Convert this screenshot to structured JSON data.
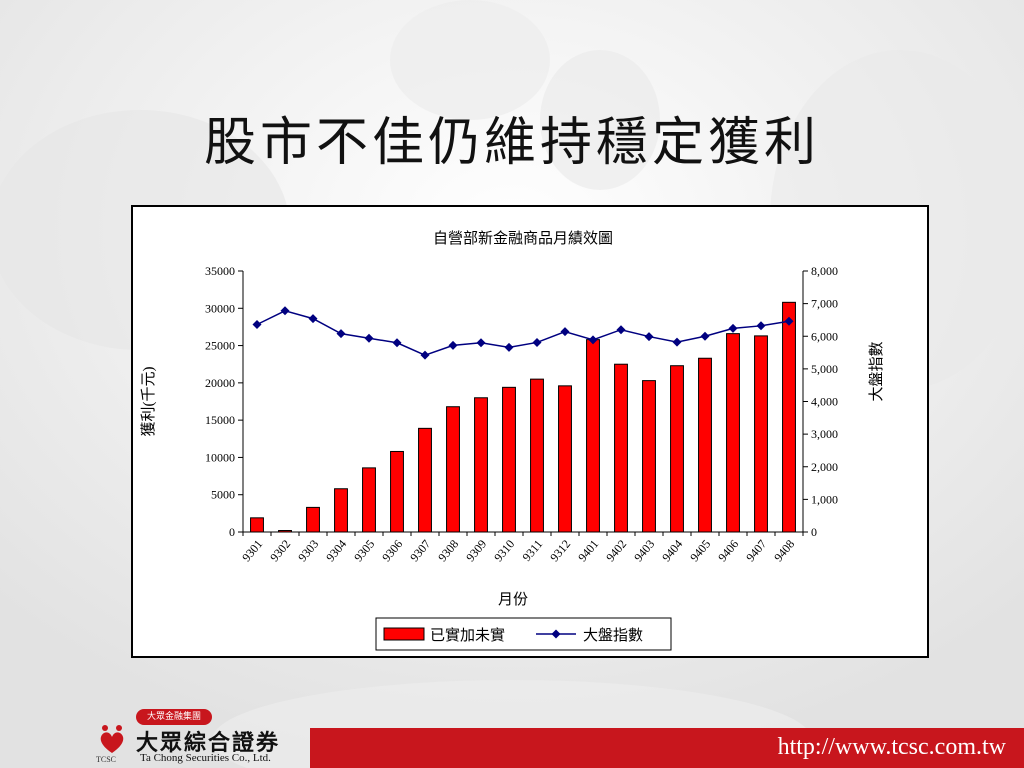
{
  "slide": {
    "title": "股市不佳仍維持穩定獲利",
    "footer_url": "http://www.tcsc.com.tw"
  },
  "logo": {
    "badge": "大眾金融集團",
    "name_cn": "大眾綜合證券",
    "name_en": "Ta Chong Securities Co., Ltd.",
    "abbr": "TCSC"
  },
  "colors": {
    "bar": "#ff0000",
    "line": "#000080",
    "footer": "#c8161d"
  },
  "chart_data": {
    "type": "bar",
    "title": "自營部新金融商品月績效圖",
    "xlabel": "月份",
    "ylabel": "獲利(千元)",
    "y2label": "大盤指數",
    "categories": [
      "9301",
      "9302",
      "9303",
      "9304",
      "9305",
      "9306",
      "9307",
      "9308",
      "9309",
      "9310",
      "9311",
      "9312",
      "9401",
      "9402",
      "9403",
      "9404",
      "9405",
      "9406",
      "9407",
      "9408"
    ],
    "ylim": [
      0,
      35000
    ],
    "y_ticks": [
      0,
      5000,
      10000,
      15000,
      20000,
      25000,
      30000,
      35000
    ],
    "y2lim": [
      0,
      8000
    ],
    "y2_ticks": [
      0,
      1000,
      2000,
      3000,
      4000,
      5000,
      6000,
      7000,
      8000
    ],
    "y2_tick_labels": [
      "0",
      "1,000",
      "2,000",
      "3,000",
      "4,000",
      "5,000",
      "6,000",
      "7,000",
      "8,000"
    ],
    "series": [
      {
        "name": "已實加未實",
        "type": "bar",
        "axis": "left",
        "values": [
          1900,
          200,
          3300,
          5800,
          8600,
          10800,
          13900,
          16800,
          18000,
          19400,
          20500,
          19600,
          25800,
          22500,
          20300,
          22300,
          23300,
          26600,
          26300,
          30800
        ]
      },
      {
        "name": "大盤指數",
        "type": "line",
        "axis": "right",
        "values": [
          6360,
          6780,
          6540,
          6080,
          5940,
          5800,
          5420,
          5720,
          5800,
          5660,
          5810,
          6140,
          5890,
          6200,
          5990,
          5820,
          6000,
          6240,
          6320,
          6460
        ]
      }
    ],
    "legend": "bottom",
    "grid": false
  }
}
